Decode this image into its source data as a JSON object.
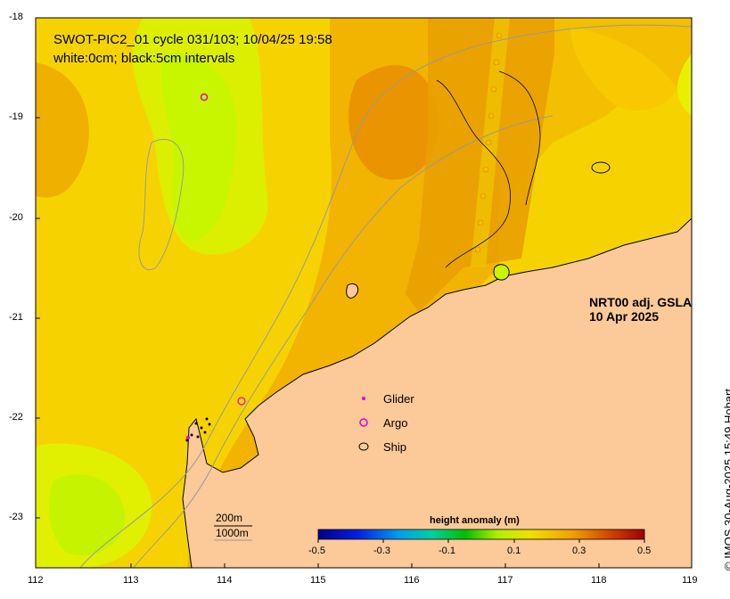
{
  "title": {
    "line1": "SWOT-PIC2_01 cycle 031/103; 10/04/25 19:58",
    "line2": "white:0cm; black:5cm intervals"
  },
  "product": {
    "line1": "NRT00 adj. GSLA",
    "line2": "10 Apr 2025"
  },
  "legend": {
    "glider": "Glider",
    "argo": "Argo",
    "ship": "Ship"
  },
  "axes": {
    "x_ticks": [
      "112",
      "113",
      "114",
      "115",
      "116",
      "117",
      "118",
      "119"
    ],
    "y_ticks": [
      "-18",
      "-19",
      "-20",
      "-21",
      "-22",
      "-23"
    ]
  },
  "scale": {
    "depth1": "200m",
    "depth2": "1000m"
  },
  "colorbar": {
    "title": "height anomaly (m)",
    "ticks": [
      "-0.5",
      "-0.3",
      "-0.1",
      "0.1",
      "0.3",
      "0.5"
    ],
    "min": -0.5,
    "max": 0.5
  },
  "copyright": "© IMOS 30-Aug-2025 15:49 Hobart",
  "colors": {
    "land": "#fcc998",
    "ocean_low": "#c8f500",
    "ocean_mid": "#f5d500",
    "ocean_high": "#ee9a00",
    "argo": "#e000e0"
  }
}
